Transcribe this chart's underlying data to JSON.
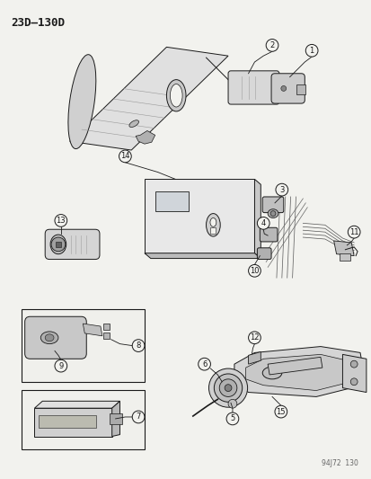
{
  "title": "23D–130D",
  "background_color": "#f2f2ee",
  "footer_text": "94J72  130",
  "line_color": "#1a1a1a",
  "fig_width": 4.14,
  "fig_height": 5.33,
  "dpi": 100
}
